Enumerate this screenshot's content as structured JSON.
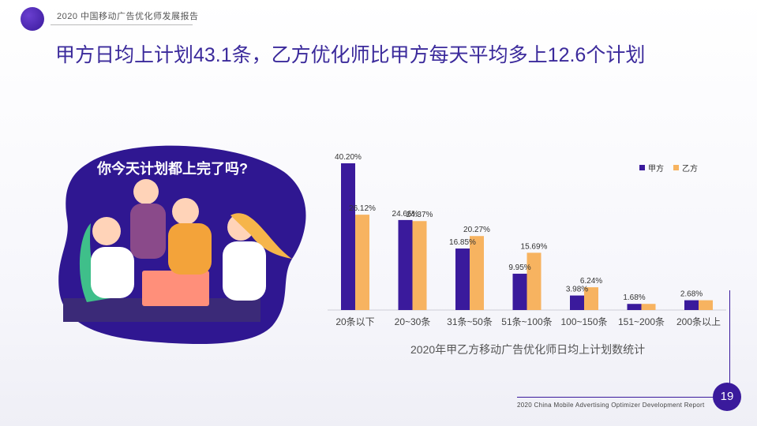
{
  "header": {
    "label": "2020 中国移动广告优化师发展报告"
  },
  "page_title": "甲方日均上计划43.1条，乙方优化师比甲方每天平均多上12.6个计划",
  "illustration": {
    "question": "你今天计划都上完了吗?"
  },
  "chart_data": {
    "type": "bar",
    "title": "2020年甲乙方移动广告优化师日均上计划数统计",
    "categories": [
      "20条以下",
      "20~30条",
      "31条~50条",
      "51条~100条",
      "100~150条",
      "151~200条",
      "200条以上"
    ],
    "series": [
      {
        "name": "甲方",
        "color": "#3a1a9c",
        "values": [
          40.2,
          24.66,
          16.85,
          9.95,
          3.98,
          1.68,
          2.68
        ]
      },
      {
        "name": "乙方",
        "color": "#f7b360",
        "values": [
          26.12,
          24.37,
          20.27,
          15.69,
          6.24,
          1.68,
          2.68
        ]
      }
    ],
    "data_labels": {
      "jia": [
        "40.20%",
        "24.66%",
        "16.85%",
        "9.95%",
        "3.98%",
        "1.68%",
        "2.68%"
      ],
      "yi": [
        "26.12%",
        "24.37%",
        "20.27%",
        "15.69%",
        "6.24%",
        "",
        ""
      ]
    },
    "legend_position": "top-right",
    "ylim": [
      0,
      45
    ]
  },
  "footer": {
    "page_number": "19",
    "label": "2020 China Mobile Advertising Optimizer Development Report"
  }
}
